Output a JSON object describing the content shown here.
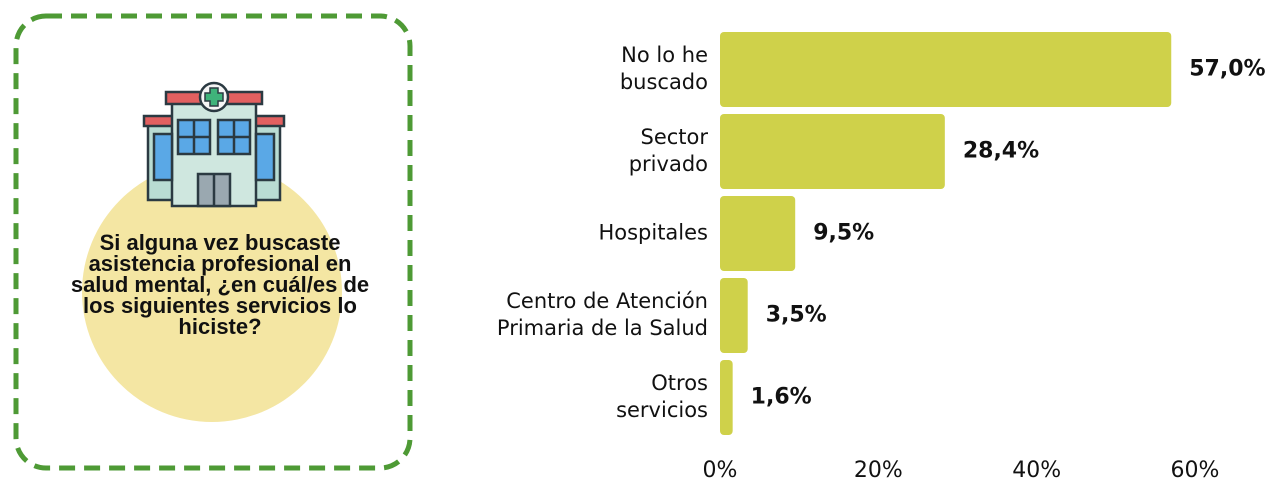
{
  "panel": {
    "question": "Si alguna vez buscaste asistencia profesional en salud mental, ¿en cuál/es de los siguientes servicios lo hiciste?"
  },
  "chart_data": {
    "type": "bar",
    "orientation": "horizontal",
    "categories": [
      "No lo he\nbuscado",
      "Sector\nprivado",
      "Hospitales",
      "Centro de Atención\nPrimaria de la Salud",
      "Otros\nservicios"
    ],
    "values": [
      57.0,
      28.4,
      9.5,
      3.5,
      1.6
    ],
    "value_labels": [
      "57,0%",
      "28,4%",
      "9,5%",
      "3,5%",
      "1,6%"
    ],
    "color": "#cfd14a",
    "xlim": [
      0,
      60
    ],
    "xticks": [
      {
        "value": 0,
        "label": "0%"
      },
      {
        "value": 20,
        "label": "20%"
      },
      {
        "value": 40,
        "label": "40%"
      },
      {
        "value": 60,
        "label": "60%"
      }
    ],
    "grid": false
  }
}
